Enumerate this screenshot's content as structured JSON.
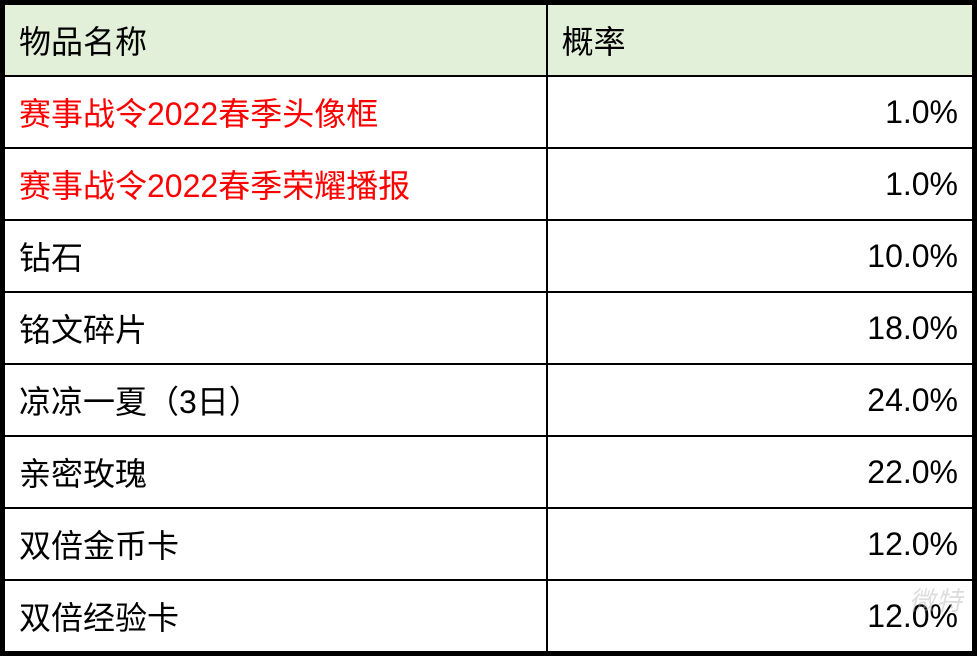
{
  "table": {
    "type": "table",
    "background_color": "#ffffff",
    "header_background_color": "#e2efd9",
    "border_color": "#000000",
    "outer_border_width": 3,
    "inner_border_width": 2,
    "text_color": "#000000",
    "highlight_color": "#ff0000",
    "font_size": 32,
    "columns": [
      {
        "key": "name",
        "label": "物品名称",
        "align": "left",
        "width_pct": 56
      },
      {
        "key": "probability",
        "label": "概率",
        "align": "right",
        "width_pct": 44
      }
    ],
    "rows": [
      {
        "name": "赛事战令2022春季头像框",
        "probability": "1.0%",
        "highlight": true
      },
      {
        "name": "赛事战令2022春季荣耀播报",
        "probability": "1.0%",
        "highlight": true
      },
      {
        "name": "钻石",
        "probability": "10.0%",
        "highlight": false
      },
      {
        "name": "铭文碎片",
        "probability": "18.0%",
        "highlight": false
      },
      {
        "name": "凉凉一夏（3日）",
        "probability": "24.0%",
        "highlight": false
      },
      {
        "name": "亲密玫瑰",
        "probability": "22.0%",
        "highlight": false
      },
      {
        "name": "双倍金币卡",
        "probability": "12.0%",
        "highlight": false
      },
      {
        "name": "双倍经验卡",
        "probability": "12.0%",
        "highlight": false
      }
    ]
  },
  "watermark": {
    "text": "微特",
    "color": "rgba(180,180,180,0.45)",
    "font_size": 26
  }
}
